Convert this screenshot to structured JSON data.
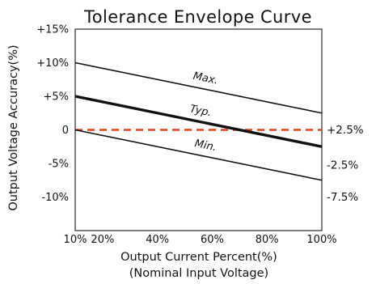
{
  "chart_data": {
    "type": "line",
    "title": "Tolerance Envelope  Curve",
    "xlabel": "Output Current Percent(%)",
    "xlabel2": "(Nominal Input Voltage)",
    "ylabel": "Output Voltage Accuracy(%)",
    "xlim": [
      10,
      100
    ],
    "ylim": [
      -15,
      15
    ],
    "x_ticks": [
      {
        "value": 10,
        "label": "10%"
      },
      {
        "value": 20,
        "label": "20%"
      },
      {
        "value": 40,
        "label": "40%"
      },
      {
        "value": 60,
        "label": "60%"
      },
      {
        "value": 80,
        "label": "80%"
      },
      {
        "value": 100,
        "label": "100%"
      }
    ],
    "y_ticks": [
      {
        "value": 15,
        "label": "+15%"
      },
      {
        "value": 10,
        "label": "+10%"
      },
      {
        "value": 5,
        "label": "+5%"
      },
      {
        "value": 0,
        "label": "0"
      },
      {
        "value": -5,
        "label": "-5%"
      },
      {
        "value": -10,
        "label": "-10%"
      }
    ],
    "grid": false,
    "series": [
      {
        "name": "Max.",
        "x": [
          10,
          100
        ],
        "y": [
          10,
          2.5
        ],
        "end_label": "+2.5%",
        "style": "thin",
        "color": "#111111"
      },
      {
        "name": "Typ.",
        "x": [
          10,
          100
        ],
        "y": [
          5,
          -2.5
        ],
        "end_label": "-2.5%",
        "style": "bold",
        "color": "#111111"
      },
      {
        "name": "Min.",
        "x": [
          10,
          100
        ],
        "y": [
          0,
          -7.5
        ],
        "end_label": "-7.5%",
        "style": "thin",
        "color": "#111111"
      }
    ],
    "reference_line": {
      "y": 0,
      "style": "dashed",
      "color": "#e0441c"
    }
  }
}
